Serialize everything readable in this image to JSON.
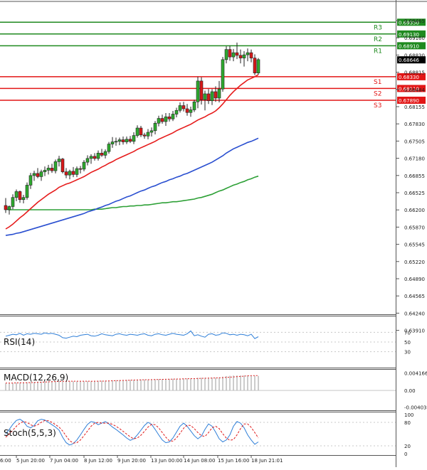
{
  "colors": {
    "bg": "#ffffff",
    "grid": "#c8c8c8",
    "frame": "#555555",
    "bull": "#2eaa2e",
    "bear": "#d81818",
    "wick": "#222222",
    "ma_fast": "#e61c1c",
    "ma_mid": "#2a4fd0",
    "ma_slow": "#2da036",
    "resistance": "#1f8a1f",
    "support": "#e21616",
    "current_price_bg": "#000000",
    "osc_line": "#2f7fd8",
    "osc_signal": "#e01a1a",
    "macd_hist": "#aaaaaa"
  },
  "price_axis": {
    "ticks": [
      "0.69465",
      "0.69160",
      "0.68830",
      "0.68815",
      "0.68484",
      "0.68155",
      "0.67830",
      "0.67505",
      "0.67180",
      "0.66855",
      "0.66525",
      "0.66200",
      "0.65870",
      "0.65545",
      "0.65220",
      "0.64890",
      "0.64565",
      "0.64240",
      "0.63910"
    ]
  },
  "levels": {
    "resistance": [
      {
        "name": "R3",
        "value": 0.6935,
        "label": "0.69350"
      },
      {
        "name": "R2",
        "value": 0.6913,
        "label": "0.69130"
      },
      {
        "name": "R1",
        "value": 0.6891,
        "label": "0.68910"
      }
    ],
    "support": [
      {
        "name": "S1",
        "value": 0.6833,
        "label": "0.68330"
      },
      {
        "name": "S2",
        "value": 0.6811,
        "label": "0.68110"
      },
      {
        "name": "S3",
        "value": 0.6789,
        "label": "0.67890"
      }
    ],
    "current": {
      "value": 0.68646,
      "label": "0.68646"
    }
  },
  "time_axis": {
    "labels": [
      "5 Jun 20:00",
      "7 Jun 04:00",
      "8 Jun 12:00",
      "9 Jun 20:00",
      "13 Jun 00:00",
      "14 Jun 08:00",
      "15 Jun 16:00",
      "18 Jun 21:01"
    ],
    "first_clipped": "6:00"
  },
  "chart_data": [
    {
      "type": "candlestick",
      "ylim": [
        0.6391,
        0.6955
      ],
      "series": [
        {
          "values": [
            [
              0.6592,
              0.6606,
              0.6578,
              0.6584
            ],
            [
              0.6584,
              0.6592,
              0.6575,
              0.659
            ],
            [
              0.659,
              0.6613,
              0.6585,
              0.6607
            ],
            [
              0.6607,
              0.6622,
              0.66,
              0.6618
            ],
            [
              0.6618,
              0.662,
              0.6597,
              0.6603
            ],
            [
              0.6603,
              0.6612,
              0.6596,
              0.6607
            ],
            [
              0.6607,
              0.6635,
              0.6603,
              0.663
            ],
            [
              0.663,
              0.6653,
              0.6623,
              0.6648
            ],
            [
              0.6648,
              0.6657,
              0.6638,
              0.6652
            ],
            [
              0.6652,
              0.6662,
              0.6643,
              0.6646
            ],
            [
              0.6646,
              0.6659,
              0.6638,
              0.6655
            ],
            [
              0.6655,
              0.6665,
              0.6647,
              0.6658
            ],
            [
              0.6658,
              0.6668,
              0.665,
              0.6662
            ],
            [
              0.6662,
              0.667,
              0.6653,
              0.6657
            ],
            [
              0.6657,
              0.6678,
              0.6652,
              0.6674
            ],
            [
              0.6674,
              0.6685,
              0.6665,
              0.6679
            ],
            [
              0.6679,
              0.6681,
              0.6652,
              0.6655
            ],
            [
              0.6655,
              0.6662,
              0.6643,
              0.6649
            ],
            [
              0.6649,
              0.6659,
              0.6641,
              0.6656
            ],
            [
              0.6656,
              0.6664,
              0.6645,
              0.665
            ],
            [
              0.665,
              0.6665,
              0.6645,
              0.6661
            ],
            [
              0.6661,
              0.6666,
              0.6652,
              0.666
            ],
            [
              0.666,
              0.6677,
              0.6656,
              0.6673
            ],
            [
              0.6673,
              0.6686,
              0.6667,
              0.668
            ],
            [
              0.668,
              0.6688,
              0.667,
              0.6684
            ],
            [
              0.6684,
              0.669,
              0.6676,
              0.668
            ],
            [
              0.668,
              0.6695,
              0.6676,
              0.669
            ],
            [
              0.669,
              0.6698,
              0.6683,
              0.6686
            ],
            [
              0.6686,
              0.6697,
              0.668,
              0.6693
            ],
            [
              0.6693,
              0.6711,
              0.6689,
              0.6707
            ],
            [
              0.6707,
              0.672,
              0.67,
              0.6711
            ],
            [
              0.6711,
              0.6719,
              0.6704,
              0.6712
            ],
            [
              0.6712,
              0.6719,
              0.6705,
              0.6715
            ],
            [
              0.6715,
              0.6721,
              0.6706,
              0.6711
            ],
            [
              0.6711,
              0.6721,
              0.6707,
              0.6716
            ],
            [
              0.6716,
              0.6722,
              0.6709,
              0.6712
            ],
            [
              0.6712,
              0.6729,
              0.6707,
              0.6723
            ],
            [
              0.6723,
              0.6742,
              0.6719,
              0.6737
            ],
            [
              0.6737,
              0.6741,
              0.672,
              0.6724
            ],
            [
              0.6724,
              0.6728,
              0.6717,
              0.6722
            ],
            [
              0.6722,
              0.6735,
              0.6716,
              0.6729
            ],
            [
              0.6729,
              0.6738,
              0.6721,
              0.6732
            ],
            [
              0.6732,
              0.675,
              0.6725,
              0.6746
            ],
            [
              0.6746,
              0.676,
              0.674,
              0.6755
            ],
            [
              0.6755,
              0.6762,
              0.6745,
              0.6749
            ],
            [
              0.6749,
              0.6765,
              0.6741,
              0.6758
            ],
            [
              0.6758,
              0.6765,
              0.6749,
              0.6754
            ],
            [
              0.6754,
              0.6769,
              0.675,
              0.6763
            ],
            [
              0.6763,
              0.6775,
              0.6757,
              0.677
            ],
            [
              0.677,
              0.6785,
              0.6766,
              0.6779
            ],
            [
              0.6779,
              0.6786,
              0.6768,
              0.6773
            ],
            [
              0.6773,
              0.6782,
              0.676,
              0.6766
            ],
            [
              0.6766,
              0.6777,
              0.6758,
              0.6771
            ],
            [
              0.6771,
              0.679,
              0.6767,
              0.6786
            ],
            [
              0.6786,
              0.6833,
              0.6774,
              0.6825
            ],
            [
              0.6825,
              0.6832,
              0.6781,
              0.679
            ],
            [
              0.679,
              0.6807,
              0.677,
              0.6801
            ],
            [
              0.6801,
              0.681,
              0.6782,
              0.6788
            ],
            [
              0.6788,
              0.681,
              0.678,
              0.6805
            ],
            [
              0.6805,
              0.6815,
              0.6786,
              0.6793
            ],
            [
              0.6793,
              0.6825,
              0.6785,
              0.681
            ],
            [
              0.681,
              0.687,
              0.6805,
              0.6865
            ],
            [
              0.6865,
              0.689,
              0.6858,
              0.6884
            ],
            [
              0.6884,
              0.6891,
              0.6863,
              0.687
            ],
            [
              0.687,
              0.6885,
              0.6862,
              0.6878
            ],
            [
              0.6878,
              0.6897,
              0.6866,
              0.6873
            ],
            [
              0.6873,
              0.6884,
              0.6858,
              0.6868
            ],
            [
              0.6868,
              0.6881,
              0.6852,
              0.6874
            ],
            [
              0.6874,
              0.6886,
              0.6862,
              0.6878
            ],
            [
              0.6878,
              0.6884,
              0.686,
              0.6868
            ],
            [
              0.6868,
              0.6875,
              0.6836,
              0.684
            ],
            [
              0.684,
              0.6868,
              0.6837,
              0.6865
            ]
          ]
        }
      ],
      "ma_fast": [
        0.6548,
        0.6552,
        0.6557,
        0.6563,
        0.6569,
        0.6574,
        0.658,
        0.6586,
        0.6592,
        0.6598,
        0.6603,
        0.6608,
        0.6613,
        0.6617,
        0.6621,
        0.6626,
        0.6629,
        0.6632,
        0.6634,
        0.6637,
        0.664,
        0.6643,
        0.6646,
        0.665,
        0.6654,
        0.6657,
        0.666,
        0.6664,
        0.6667,
        0.6671,
        0.6674,
        0.6678,
        0.6681,
        0.6684,
        0.6687,
        0.669,
        0.6693,
        0.6697,
        0.67,
        0.6703,
        0.6706,
        0.6709,
        0.6712,
        0.6716,
        0.6719,
        0.6722,
        0.6725,
        0.6728,
        0.6732,
        0.6735,
        0.6738,
        0.6741,
        0.6744,
        0.6748,
        0.6752,
        0.6755,
        0.6758,
        0.6762,
        0.6765,
        0.6769,
        0.6775,
        0.6782,
        0.679,
        0.6798,
        0.6805,
        0.6811,
        0.6817,
        0.6822,
        0.6827,
        0.683,
        0.6833,
        0.6837
      ],
      "ma_mid": [
        0.6536,
        0.6537,
        0.6538,
        0.654,
        0.6541,
        0.6543,
        0.6545,
        0.6547,
        0.6549,
        0.6551,
        0.6553,
        0.6555,
        0.6557,
        0.6559,
        0.6561,
        0.6563,
        0.6565,
        0.6567,
        0.6569,
        0.6571,
        0.6573,
        0.6575,
        0.6577,
        0.658,
        0.6582,
        0.6584,
        0.6587,
        0.6589,
        0.6592,
        0.6594,
        0.6597,
        0.66,
        0.6602,
        0.6605,
        0.6608,
        0.661,
        0.6613,
        0.6616,
        0.6619,
        0.6621,
        0.6624,
        0.6627,
        0.6629,
        0.6632,
        0.6635,
        0.6637,
        0.664,
        0.6642,
        0.6645,
        0.6647,
        0.665,
        0.6652,
        0.6655,
        0.6658,
        0.6661,
        0.6664,
        0.6667,
        0.667,
        0.6673,
        0.6677,
        0.6681,
        0.6685,
        0.669,
        0.6694,
        0.6698,
        0.6701,
        0.6704,
        0.6707,
        0.671,
        0.6712,
        0.6715,
        0.6718
      ],
      "ma_slow": [
        0.6585,
        0.6584,
        0.6584,
        0.6584,
        0.6584,
        0.6584,
        0.6584,
        0.6584,
        0.6584,
        0.6584,
        0.6584,
        0.6584,
        0.6584,
        0.6584,
        0.6584,
        0.6584,
        0.6584,
        0.6584,
        0.6584,
        0.6584,
        0.6584,
        0.6584,
        0.6584,
        0.6584,
        0.6584,
        0.6585,
        0.6585,
        0.6585,
        0.6586,
        0.6587,
        0.6588,
        0.6588,
        0.6589,
        0.659,
        0.659,
        0.6591,
        0.6591,
        0.6592,
        0.6592,
        0.6593,
        0.6593,
        0.6594,
        0.6595,
        0.6596,
        0.6597,
        0.6597,
        0.6598,
        0.6599,
        0.6599,
        0.66,
        0.6601,
        0.6602,
        0.6603,
        0.6604,
        0.6606,
        0.6607,
        0.6609,
        0.6611,
        0.6613,
        0.6616,
        0.6619,
        0.6621,
        0.6624,
        0.6627,
        0.663,
        0.6632,
        0.6635,
        0.6637,
        0.664,
        0.6642,
        0.6645,
        0.6647
      ]
    },
    {
      "type": "line",
      "title": "RSI(14)",
      "ylim": [
        0,
        100
      ],
      "y_ticks": [
        "70",
        "50",
        "30"
      ],
      "series": [
        {
          "values": [
            62,
            64,
            66,
            65,
            68,
            64,
            67,
            66,
            68,
            67,
            66,
            69,
            67,
            68,
            66,
            64,
            59,
            58,
            60,
            62,
            61,
            64,
            65,
            66,
            63,
            62,
            64,
            67,
            65,
            64,
            63,
            66,
            67,
            65,
            64,
            66,
            65,
            64,
            66,
            67,
            64,
            63,
            66,
            67,
            65,
            64,
            66,
            68,
            66,
            65,
            64,
            67,
            73,
            63,
            65,
            62,
            60,
            66,
            67,
            64,
            65,
            69,
            68,
            65,
            66,
            64,
            66,
            65,
            63,
            66,
            57,
            61
          ]
        }
      ]
    },
    {
      "type": "bar",
      "title": "MACD(12,26,9)",
      "y_ticks": [
        "0.004166",
        "0.00",
        "-0.004039"
      ],
      "ylim": [
        -0.004039,
        0.004166
      ],
      "series": [
        {
          "values": [
            0.00175,
            0.00178,
            0.00182,
            0.00186,
            0.0019,
            0.00193,
            0.00197,
            0.00202,
            0.00207,
            0.00211,
            0.00214,
            0.00218,
            0.00221,
            0.00223,
            0.00226,
            0.00228,
            0.00225,
            0.00222,
            0.0022,
            0.00218,
            0.00217,
            0.00218,
            0.0022,
            0.00223,
            0.00226,
            0.00229,
            0.00232,
            0.00234,
            0.00236,
            0.0024,
            0.00244,
            0.00247,
            0.0025,
            0.00252,
            0.00254,
            0.00255,
            0.00258,
            0.00262,
            0.00264,
            0.00263,
            0.00264,
            0.00265,
            0.00268,
            0.00272,
            0.00274,
            0.00276,
            0.00277,
            0.00279,
            0.00282,
            0.00285,
            0.00287,
            0.00287,
            0.00288,
            0.00292,
            0.00302,
            0.00305,
            0.00306,
            0.00305,
            0.00308,
            0.00307,
            0.00314,
            0.0033,
            0.00345,
            0.00352,
            0.00358,
            0.0036,
            0.00361,
            0.00362,
            0.00363,
            0.0036,
            0.00352,
            0.0035
          ]
        }
      ]
    },
    {
      "type": "line",
      "title": "Stoch(5,5,3)",
      "ylim": [
        0,
        100
      ],
      "y_ticks": [
        "100",
        "80",
        "20",
        "0"
      ],
      "series": [
        {
          "values": [
            50,
            62,
            75,
            85,
            88,
            82,
            70,
            66,
            72,
            84,
            88,
            86,
            80,
            74,
            68,
            60,
            42,
            28,
            22,
            26,
            35,
            48,
            62,
            75,
            82,
            80,
            74,
            78,
            82,
            76,
            68,
            62,
            55,
            48,
            40,
            34,
            38,
            48,
            60,
            72,
            80,
            75,
            62,
            48,
            35,
            28,
            30,
            40,
            55,
            70,
            78,
            70,
            58,
            46,
            38,
            45,
            62,
            76,
            70,
            55,
            38,
            30,
            35,
            48,
            70,
            82,
            78,
            66,
            48,
            35,
            24,
            30
          ]
        },
        {
          "values": [
            42,
            50,
            60,
            70,
            78,
            82,
            80,
            74,
            70,
            74,
            80,
            85,
            84,
            80,
            74,
            68,
            58,
            45,
            33,
            27,
            28,
            35,
            46,
            58,
            70,
            78,
            80,
            78,
            78,
            78,
            75,
            70,
            64,
            57,
            50,
            43,
            38,
            40,
            47,
            57,
            68,
            75,
            74,
            66,
            54,
            42,
            33,
            32,
            40,
            52,
            65,
            73,
            72,
            64,
            54,
            46,
            44,
            54,
            66,
            70,
            64,
            51,
            40,
            34,
            36,
            48,
            64,
            76,
            76,
            67,
            54,
            40
          ]
        }
      ]
    }
  ]
}
